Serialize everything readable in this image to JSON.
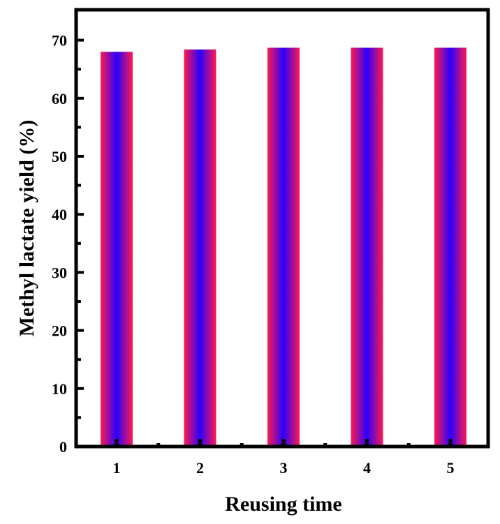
{
  "chart_data": {
    "type": "bar",
    "categories": [
      "1",
      "2",
      "3",
      "4",
      "5"
    ],
    "values": [
      68.0,
      68.4,
      68.7,
      68.7,
      68.7
    ],
    "xlabel": "Reusing time",
    "ylabel": "Methyl lactate yield (%)",
    "ylim": [
      0,
      75
    ],
    "yticks": [
      "0",
      "10",
      "20",
      "30",
      "40",
      "50",
      "60",
      "70"
    ],
    "grid": false,
    "legend": "none",
    "colors": {
      "bar_edge": "#ff1a4d",
      "bar_center": "#2a00ff",
      "axis": "#000000"
    }
  }
}
